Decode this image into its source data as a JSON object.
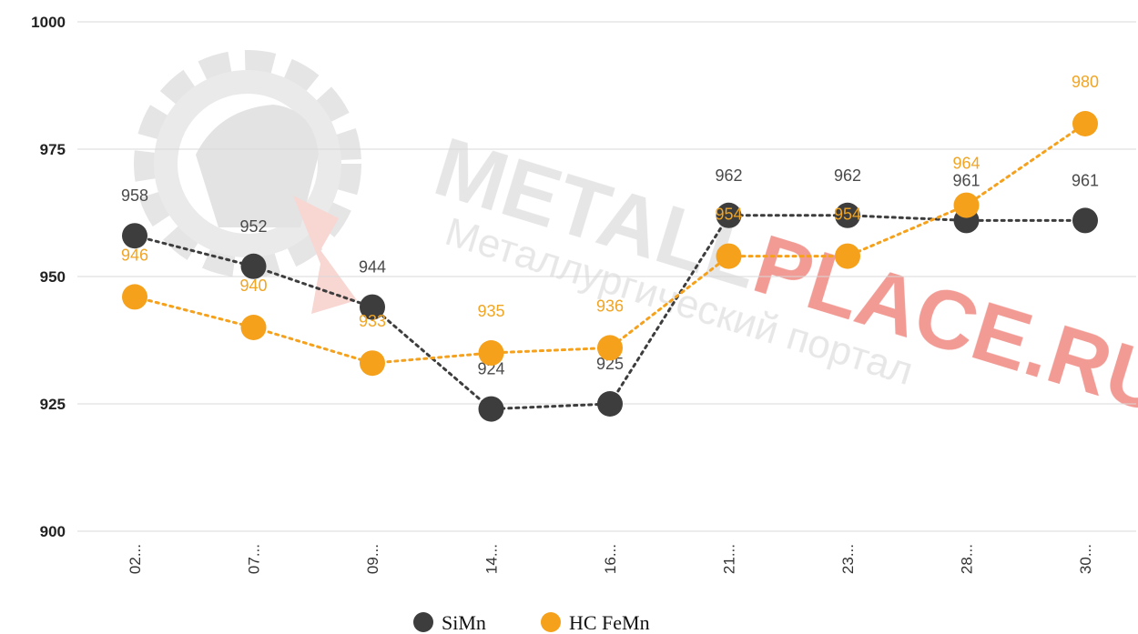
{
  "chart_data": {
    "type": "line",
    "title": "",
    "xlabel": "",
    "ylabel": "",
    "categories": [
      "02...",
      "07...",
      "09...",
      "14...",
      "16...",
      "21...",
      "23...",
      "28...",
      "30..."
    ],
    "ylim": [
      900,
      1000
    ],
    "yticks": [
      900,
      925,
      950,
      975,
      1000
    ],
    "grid": true,
    "legend_position": "bottom-center",
    "series": [
      {
        "name": "SiMn",
        "color": "#3d3d3d",
        "values": [
          958,
          952,
          944,
          924,
          925,
          962,
          962,
          961,
          961
        ],
        "labels": [
          "958",
          "952",
          "944",
          "924",
          "925",
          "962",
          "962",
          "961",
          "961"
        ]
      },
      {
        "name": "HC FeMn",
        "color": "#f5a11c",
        "values": [
          946,
          940,
          933,
          935,
          936,
          954,
          954,
          964,
          980
        ],
        "labels": [
          "946",
          "940",
          "933",
          "935",
          "936",
          "954",
          "954",
          "964",
          "980"
        ]
      }
    ]
  },
  "watermark": {
    "brand_part1": "METALL",
    "brand_part2": "PLACE.RU",
    "tagline": "Металлургический портал",
    "brand_color": "#e84a3f"
  }
}
